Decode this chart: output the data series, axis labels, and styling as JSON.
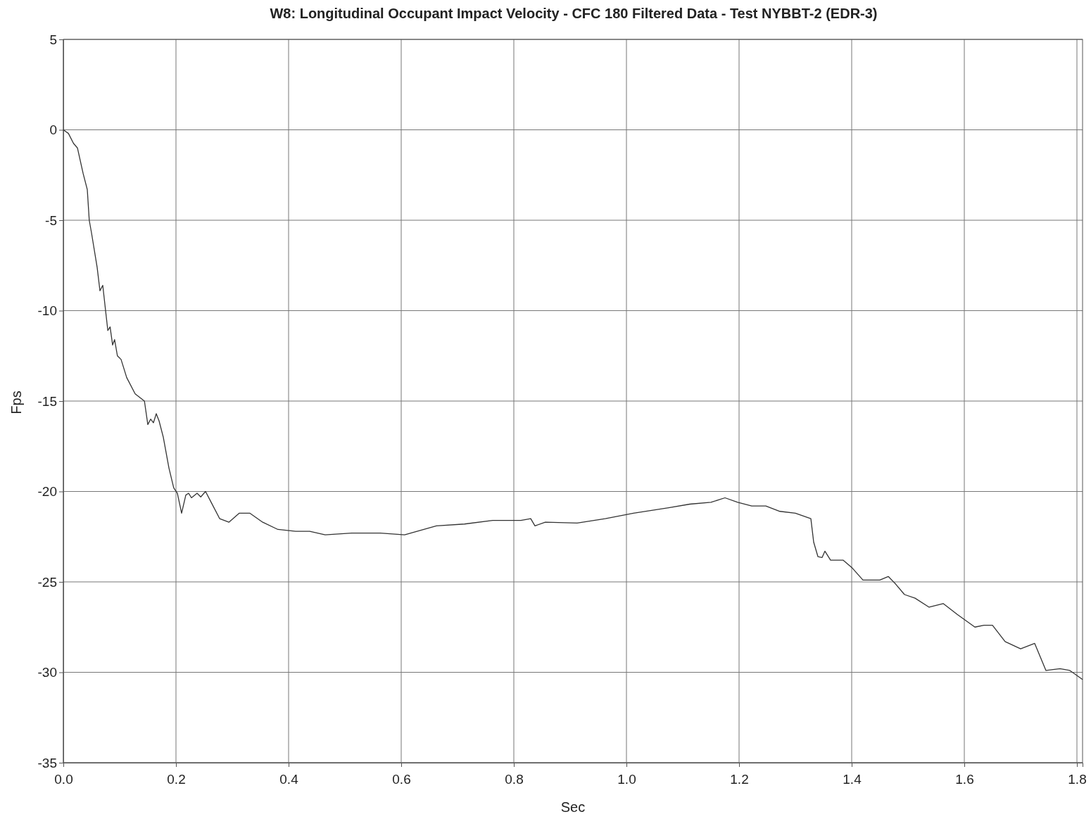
{
  "chart_data": {
    "type": "line",
    "title": "W8: Longitudinal Occupant Impact Velocity - CFC 180 Filtered Data - Test NYBBT-2 (EDR-3)",
    "xlabel": "Sec",
    "ylabel": "Fps",
    "xlim": [
      0,
      1.81
    ],
    "ylim": [
      -35,
      5
    ],
    "xticks": [
      {
        "value": 0,
        "label": "0.0"
      },
      0.2,
      0.4,
      0.6,
      0.8,
      {
        "value": 1,
        "label": "1.0"
      },
      1.2,
      1.4,
      1.6,
      1.8
    ],
    "yticks": [
      -35,
      -30,
      -25,
      -20,
      -15,
      -10,
      -5,
      0,
      5
    ],
    "grid": true,
    "marker": "none",
    "line_style": "solid",
    "series": [
      {
        "color": "#333333",
        "x": [
          0,
          0.009,
          0.018,
          0.025,
          0.035,
          0.0425,
          0.046,
          0.05,
          0.06,
          0.065,
          0.07,
          0.075,
          0.079,
          0.083,
          0.0875,
          0.091,
          0.096,
          0.1025,
          0.1125,
          0.1275,
          0.144,
          0.15,
          0.155,
          0.16,
          0.165,
          0.17,
          0.1775,
          0.1875,
          0.196,
          0.2025,
          0.21,
          0.2175,
          0.2225,
          0.2275,
          0.2375,
          0.244,
          0.2525,
          0.2625,
          0.2775,
          0.294,
          0.3125,
          0.331,
          0.354,
          0.381,
          0.4125,
          0.4375,
          0.465,
          0.5125,
          0.5625,
          0.606,
          0.6625,
          0.7125,
          0.7625,
          0.8125,
          0.83,
          0.8375,
          0.856,
          0.9125,
          0.9625,
          1.0125,
          1.075,
          1.1125,
          1.15,
          1.175,
          1.1975,
          1.2225,
          1.2475,
          1.2725,
          1.3,
          1.3275,
          1.3325,
          1.34,
          1.3475,
          1.3525,
          1.3625,
          1.385,
          1.4,
          1.42,
          1.45,
          1.465,
          1.4775,
          1.4938,
          1.5125,
          1.5375,
          1.5625,
          1.5875,
          1.6188,
          1.635,
          1.65,
          1.6725,
          1.7,
          1.725,
          1.745,
          1.77,
          1.7875,
          1.81
        ],
        "values": [
          0,
          -0.2,
          -0.75,
          -1.0,
          -2.4,
          -3.3,
          -5.0,
          -5.7,
          -7.6,
          -8.9,
          -8.6,
          -10.0,
          -11.1,
          -10.9,
          -11.9,
          -11.6,
          -12.5,
          -12.7,
          -13.7,
          -14.6,
          -15.0,
          -16.3,
          -16.0,
          -16.2,
          -15.7,
          -16.1,
          -17.0,
          -18.7,
          -19.8,
          -20.1,
          -21.2,
          -20.2,
          -20.1,
          -20.35,
          -20.1,
          -20.3,
          -20.0,
          -20.6,
          -21.5,
          -21.7,
          -21.2,
          -21.2,
          -21.7,
          -22.1,
          -22.2,
          -22.2,
          -22.4,
          -22.3,
          -22.3,
          -22.4,
          -21.9,
          -21.8,
          -21.6,
          -21.6,
          -21.5,
          -21.9,
          -21.7,
          -21.75,
          -21.5,
          -21.2,
          -20.9,
          -20.7,
          -20.6,
          -20.35,
          -20.6,
          -20.8,
          -20.8,
          -21.1,
          -21.2,
          -21.5,
          -22.8,
          -23.6,
          -23.65,
          -23.3,
          -23.8,
          -23.8,
          -24.2,
          -24.9,
          -24.9,
          -24.7,
          -25.1,
          -25.7,
          -25.9,
          -26.4,
          -26.2,
          -26.8,
          -27.5,
          -27.4,
          -27.4,
          -28.3,
          -28.7,
          -28.4,
          -29.9,
          -29.8,
          -29.9,
          -30.4
        ]
      }
    ]
  }
}
